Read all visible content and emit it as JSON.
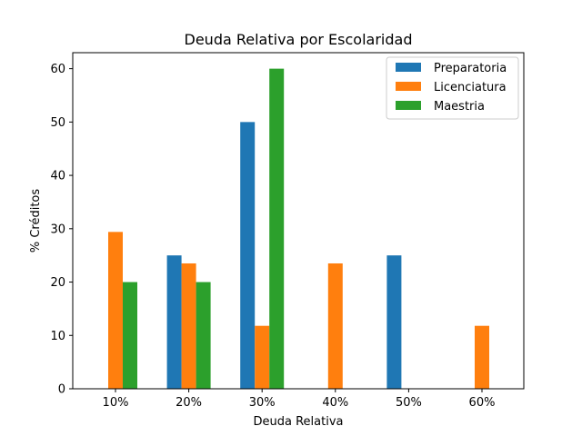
{
  "chart_data": {
    "type": "bar",
    "title": "Deuda Relativa por Escolaridad",
    "xlabel": "Deuda Relativa",
    "ylabel": "% Créditos",
    "categories": [
      "10%",
      "20%",
      "30%",
      "40%",
      "50%",
      "60%"
    ],
    "series": [
      {
        "name": "Preparatoria",
        "color": "#1f77b4",
        "values": [
          0,
          25,
          50,
          0,
          25,
          0
        ]
      },
      {
        "name": "Licenciatura",
        "color": "#ff7f0e",
        "values": [
          29.4,
          23.5,
          11.8,
          23.5,
          0,
          11.8
        ]
      },
      {
        "name": "Maestria",
        "color": "#2ca02c",
        "values": [
          20,
          20,
          60,
          0,
          0,
          0
        ]
      }
    ],
    "ylim": [
      0,
      63
    ],
    "yticks": [
      0,
      10,
      20,
      30,
      40,
      50,
      60
    ],
    "legend_position": "top-right",
    "grid": false
  }
}
